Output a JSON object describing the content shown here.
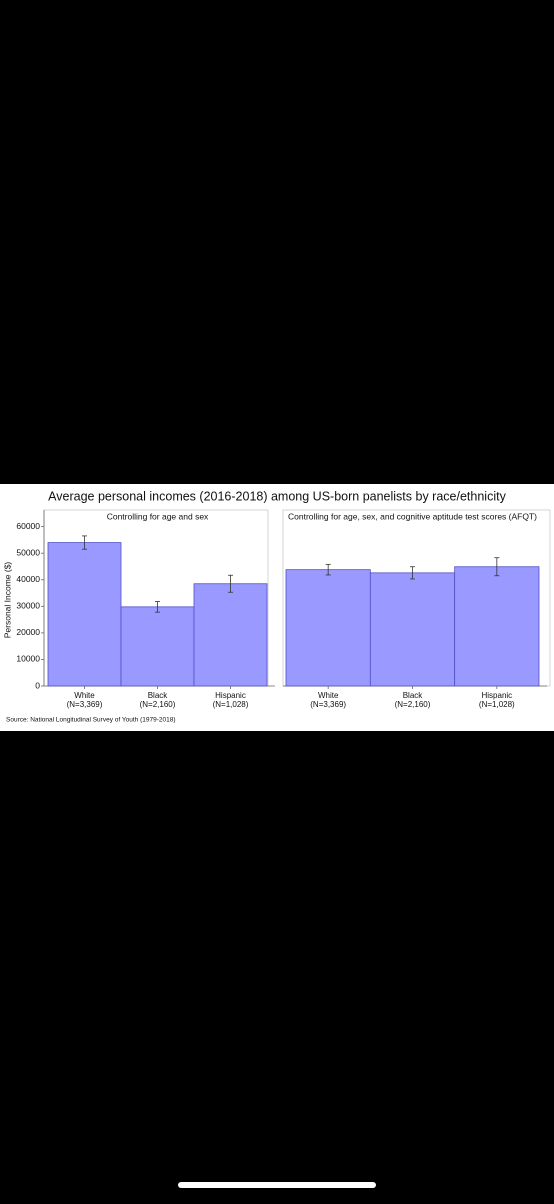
{
  "title": "Average personal incomes (2016-2018) among US-born panelists by race/ethnicity",
  "y_label": "Personal Income ($)",
  "source": "Source: National Longitudinal Survey of Youth (1979-2018)",
  "chart_data": [
    {
      "type": "bar",
      "subtitle": "Controlling for age and sex",
      "categories": [
        "White",
        "Black",
        "Hispanic"
      ],
      "category_counts": [
        "(N=3,369)",
        "(N=2,160)",
        "(N=1,028)"
      ],
      "values": [
        54000,
        29800,
        38500
      ],
      "errors": [
        2500,
        2000,
        3200
      ],
      "color": "#9999ff",
      "edge_color": "#5050c8",
      "ylim": [
        0,
        64000
      ],
      "yticks": [
        0,
        10000,
        20000,
        30000,
        40000,
        50000,
        60000
      ]
    },
    {
      "type": "bar",
      "subtitle": "Controlling for age, sex, and cognitive aptitude test scores (AFQT)",
      "categories": [
        "White",
        "Black",
        "Hispanic"
      ],
      "category_counts": [
        "(N=3,369)",
        "(N=2,160)",
        "(N=1,028)"
      ],
      "values": [
        43800,
        42600,
        44900
      ],
      "errors": [
        2000,
        2300,
        3400
      ],
      "color": "#9999ff",
      "edge_color": "#5050c8",
      "ylim": [
        0,
        64000
      ],
      "yticks": []
    }
  ]
}
